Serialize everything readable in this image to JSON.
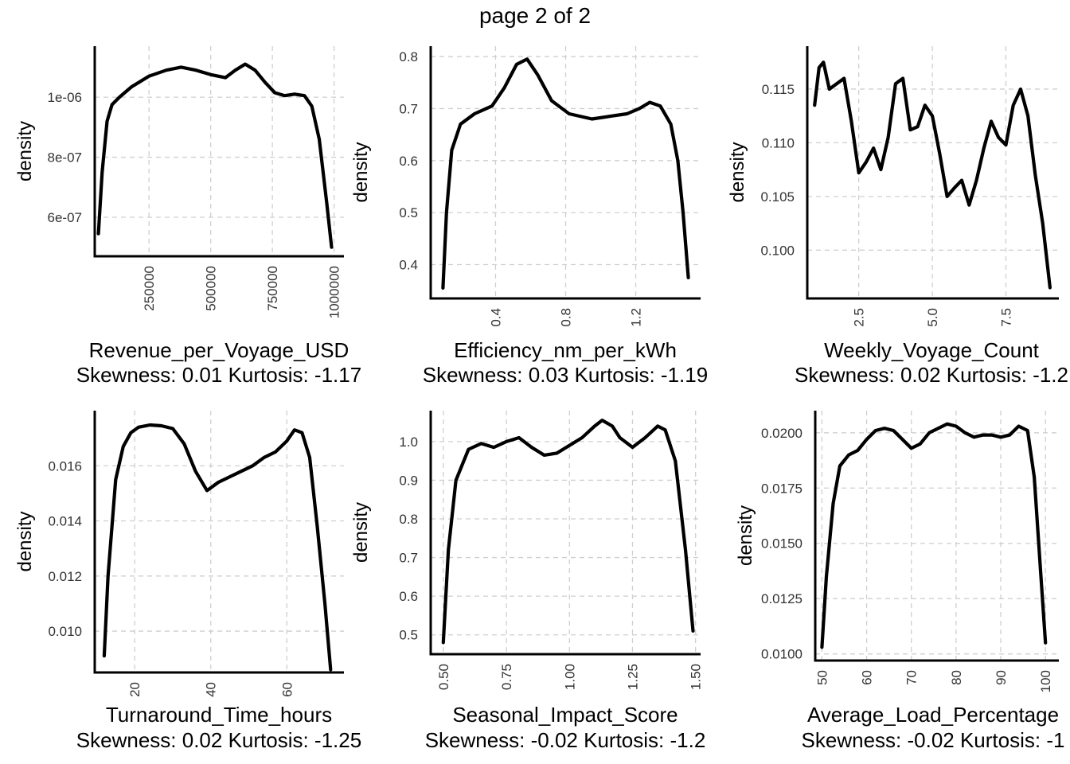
{
  "page_title": "page 2 of 2",
  "chart_data": [
    {
      "type": "line",
      "xlabel": "Revenue_per_Voyage_USD",
      "ylabel": "density",
      "subtitle": "Skewness: 0.01 Kurtosis: -1.17",
      "xlim": [
        30000,
        1040000
      ],
      "ylim": [
        4.7e-07,
        1.17e-06
      ],
      "xticks": [
        250000,
        500000,
        750000,
        1000000
      ],
      "xtick_labels": [
        "250000",
        "500000",
        "750000",
        "1000000"
      ],
      "yticks": [
        6e-07,
        8e-07,
        1e-06
      ],
      "ytick_labels": [
        "6e-07",
        "8e-07",
        "1e-06"
      ],
      "x_tick_rotated": true,
      "grid": true,
      "x": [
        45000,
        60000,
        80000,
        100000,
        130000,
        180000,
        250000,
        320000,
        380000,
        440000,
        500000,
        560000,
        600000,
        640000,
        680000,
        720000,
        760000,
        800000,
        840000,
        880000,
        910000,
        940000,
        970000,
        990000
      ],
      "values": [
        5.45e-07,
        7.5e-07,
        9.2e-07,
        9.75e-07,
        1e-06,
        1.035e-06,
        1.07e-06,
        1.09e-06,
        1.1e-06,
        1.09e-06,
        1.075e-06,
        1.065e-06,
        1.09e-06,
        1.11e-06,
        1.09e-06,
        1.05e-06,
        1.015e-06,
        1.005e-06,
        1.01e-06,
        1.005e-06,
        9.7e-07,
        8.6e-07,
        6.5e-07,
        5e-07
      ]
    },
    {
      "type": "line",
      "xlabel": "Efficiency_nm_per_kWh",
      "ylabel": "density",
      "subtitle": "Skewness: 0.03 Kurtosis: -1.19",
      "xlim": [
        0.03,
        1.57
      ],
      "ylim": [
        0.335,
        0.82
      ],
      "xticks": [
        0.4,
        0.8,
        1.2
      ],
      "xtick_labels": [
        "0.4",
        "0.8",
        "1.2"
      ],
      "yticks": [
        0.4,
        0.5,
        0.6,
        0.7,
        0.8
      ],
      "ytick_labels": [
        "0.4",
        "0.5",
        "0.6",
        "0.7",
        "0.8"
      ],
      "x_tick_rotated": true,
      "grid": true,
      "x": [
        0.1,
        0.12,
        0.15,
        0.2,
        0.28,
        0.38,
        0.45,
        0.52,
        0.58,
        0.64,
        0.72,
        0.82,
        0.95,
        1.05,
        1.15,
        1.22,
        1.28,
        1.34,
        1.4,
        1.44,
        1.47,
        1.5
      ],
      "values": [
        0.355,
        0.5,
        0.62,
        0.67,
        0.69,
        0.705,
        0.74,
        0.785,
        0.795,
        0.765,
        0.715,
        0.69,
        0.68,
        0.685,
        0.69,
        0.7,
        0.712,
        0.705,
        0.67,
        0.6,
        0.5,
        0.375
      ]
    },
    {
      "type": "line",
      "xlabel": "Weekly_Voyage_Count",
      "ylabel": "density",
      "subtitle": "Skewness: 0.02 Kurtosis: -1.2",
      "xlim": [
        0.75,
        9.3
      ],
      "ylim": [
        0.0955,
        0.119
      ],
      "xticks": [
        2.5,
        5.0,
        7.5
      ],
      "xtick_labels": [
        "2.5",
        "5.0",
        "7.5"
      ],
      "yticks": [
        0.1,
        0.105,
        0.11,
        0.115
      ],
      "ytick_labels": [
        "0.100",
        "0.105",
        "0.110",
        "0.115"
      ],
      "x_tick_rotated": true,
      "grid": true,
      "x": [
        1.0,
        1.15,
        1.3,
        1.5,
        1.75,
        2.0,
        2.25,
        2.5,
        2.75,
        3.0,
        3.25,
        3.5,
        3.75,
        4.0,
        4.25,
        4.5,
        4.75,
        5.0,
        5.25,
        5.5,
        5.75,
        6.0,
        6.25,
        6.5,
        6.75,
        7.0,
        7.25,
        7.5,
        7.75,
        8.0,
        8.25,
        8.5,
        8.75,
        9.0
      ],
      "values": [
        0.1135,
        0.117,
        0.1175,
        0.115,
        0.1155,
        0.116,
        0.112,
        0.1072,
        0.1082,
        0.1095,
        0.1075,
        0.1105,
        0.1155,
        0.116,
        0.1112,
        0.1115,
        0.1135,
        0.1125,
        0.109,
        0.105,
        0.1058,
        0.1065,
        0.1042,
        0.1065,
        0.1095,
        0.112,
        0.1105,
        0.1098,
        0.1135,
        0.115,
        0.1125,
        0.107,
        0.1025,
        0.0965
      ]
    },
    {
      "type": "line",
      "xlabel": "Turnaround_Time_hours",
      "ylabel": "density",
      "subtitle": "Skewness: 0.02 Kurtosis: -1.25",
      "xlim": [
        9.5,
        75
      ],
      "ylim": [
        0.0085,
        0.018
      ],
      "xticks": [
        20,
        40,
        60
      ],
      "xtick_labels": [
        "20",
        "40",
        "60"
      ],
      "yticks": [
        0.01,
        0.012,
        0.014,
        0.016
      ],
      "ytick_labels": [
        "0.010",
        "0.012",
        "0.014",
        "0.016"
      ],
      "x_tick_rotated": true,
      "grid": true,
      "x": [
        12,
        13,
        15,
        17,
        19,
        21,
        24,
        27,
        30,
        33,
        36,
        39,
        42,
        45,
        48,
        51,
        54,
        57,
        60,
        62,
        64,
        66,
        68,
        70,
        71.5
      ],
      "values": [
        0.0091,
        0.012,
        0.0155,
        0.0167,
        0.0172,
        0.0174,
        0.01748,
        0.01745,
        0.01735,
        0.0168,
        0.0158,
        0.0151,
        0.0154,
        0.0156,
        0.0158,
        0.016,
        0.0163,
        0.0165,
        0.0169,
        0.0173,
        0.0172,
        0.0163,
        0.0138,
        0.011,
        0.0086
      ]
    },
    {
      "type": "line",
      "xlabel": "Seasonal_Impact_Score",
      "ylabel": "density",
      "subtitle": "Skewness: -0.02 Kurtosis: -1.2",
      "xlim": [
        0.45,
        1.52
      ],
      "ylim": [
        0.45,
        1.08
      ],
      "xticks": [
        0.5,
        0.75,
        1.0,
        1.25,
        1.5
      ],
      "xtick_labels": [
        "0.50",
        "0.75",
        "1.00",
        "1.25",
        "1.50"
      ],
      "yticks": [
        0.5,
        0.6,
        0.7,
        0.8,
        0.9,
        1.0
      ],
      "ytick_labels": [
        "0.5",
        "0.6",
        "0.7",
        "0.8",
        "0.9",
        "1.0"
      ],
      "x_tick_rotated": true,
      "grid": true,
      "x": [
        0.5,
        0.52,
        0.55,
        0.6,
        0.65,
        0.7,
        0.75,
        0.8,
        0.85,
        0.9,
        0.95,
        1.0,
        1.05,
        1.1,
        1.13,
        1.17,
        1.2,
        1.25,
        1.3,
        1.35,
        1.38,
        1.42,
        1.46,
        1.49
      ],
      "values": [
        0.48,
        0.72,
        0.9,
        0.98,
        0.995,
        0.985,
        1.0,
        1.01,
        0.985,
        0.965,
        0.97,
        0.99,
        1.01,
        1.04,
        1.055,
        1.04,
        1.01,
        0.985,
        1.01,
        1.04,
        1.03,
        0.95,
        0.72,
        0.51
      ]
    },
    {
      "type": "line",
      "xlabel": "Average_Load_Percentage",
      "ylabel": "density",
      "subtitle": "Skewness: -0.02 Kurtosis: -1",
      "xlim": [
        48.5,
        103
      ],
      "ylim": [
        0.0097,
        0.021
      ],
      "xticks": [
        50,
        60,
        70,
        80,
        90,
        100
      ],
      "xtick_labels": [
        "50",
        "60",
        "70",
        "80",
        "90",
        "100"
      ],
      "yticks": [
        0.01,
        0.0125,
        0.015,
        0.0175,
        0.02
      ],
      "ytick_labels": [
        "0.0100",
        "0.0125",
        "0.0150",
        "0.0175",
        "0.0200"
      ],
      "x_tick_rotated": true,
      "grid": true,
      "x": [
        50,
        51,
        52.5,
        54,
        56,
        58,
        60,
        62,
        64,
        66,
        68,
        70,
        72,
        74,
        76,
        78,
        80,
        82,
        84,
        86,
        88,
        90,
        92,
        94,
        96,
        97.5,
        99,
        100
      ],
      "values": [
        0.0103,
        0.0135,
        0.0168,
        0.0185,
        0.019,
        0.0192,
        0.0197,
        0.0201,
        0.0202,
        0.0201,
        0.0197,
        0.0193,
        0.0195,
        0.02,
        0.0202,
        0.0204,
        0.0203,
        0.02,
        0.0198,
        0.0199,
        0.0199,
        0.0198,
        0.0199,
        0.0203,
        0.0201,
        0.018,
        0.0135,
        0.0105
      ]
    }
  ]
}
